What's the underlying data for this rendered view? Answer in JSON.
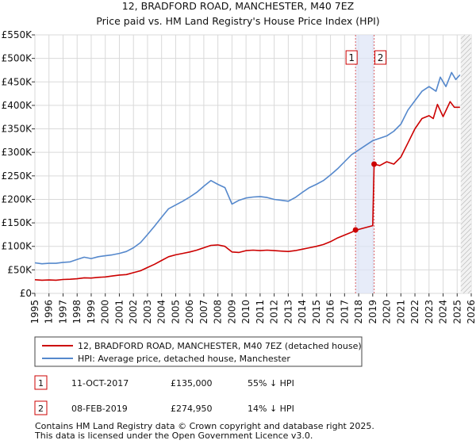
{
  "chart_data": {
    "type": "line",
    "title": "12, BRADFORD ROAD, MANCHESTER, M40 7EZ",
    "subtitle": "Price paid vs. HM Land Registry's House Price Index (HPI)",
    "ylim": [
      0,
      550000
    ],
    "xlim": [
      1995,
      2026
    ],
    "y_ticks": [
      {
        "value": 0,
        "label": "£0"
      },
      {
        "value": 50000,
        "label": "£50K"
      },
      {
        "value": 100000,
        "label": "£100K"
      },
      {
        "value": 150000,
        "label": "£150K"
      },
      {
        "value": 200000,
        "label": "£200K"
      },
      {
        "value": 250000,
        "label": "£250K"
      },
      {
        "value": 300000,
        "label": "£300K"
      },
      {
        "value": 350000,
        "label": "£350K"
      },
      {
        "value": 400000,
        "label": "£400K"
      },
      {
        "value": 450000,
        "label": "£450K"
      },
      {
        "value": 500000,
        "label": "£500K"
      },
      {
        "value": 550000,
        "label": "£550K"
      }
    ],
    "x_ticks": [
      "1995",
      "1996",
      "1997",
      "1998",
      "1999",
      "2000",
      "2001",
      "2002",
      "2003",
      "2004",
      "2005",
      "2006",
      "2007",
      "2008",
      "2009",
      "2010",
      "2011",
      "2012",
      "2013",
      "2014",
      "2015",
      "2016",
      "2017",
      "2018",
      "2019",
      "2020",
      "2021",
      "2022",
      "2023",
      "2024",
      "2025",
      "2026"
    ],
    "grid": true,
    "series": [
      {
        "name": "12, BRADFORD ROAD, MANCHESTER, M40 7EZ (detached house)",
        "color": "#cc0000",
        "points": [
          [
            1995.0,
            29000
          ],
          [
            1995.5,
            28000
          ],
          [
            1996.0,
            28500
          ],
          [
            1996.5,
            28000
          ],
          [
            1997.0,
            29500
          ],
          [
            1997.5,
            30000
          ],
          [
            1998.0,
            31000
          ],
          [
            1998.5,
            33000
          ],
          [
            1999.0,
            32500
          ],
          [
            1999.5,
            34000
          ],
          [
            2000.0,
            35000
          ],
          [
            2000.5,
            37000
          ],
          [
            2001.0,
            39000
          ],
          [
            2001.5,
            40000
          ],
          [
            2002.0,
            44000
          ],
          [
            2002.5,
            48000
          ],
          [
            2003.0,
            55000
          ],
          [
            2003.5,
            62000
          ],
          [
            2004.0,
            70000
          ],
          [
            2004.5,
            78000
          ],
          [
            2005.0,
            82000
          ],
          [
            2005.5,
            85000
          ],
          [
            2006.0,
            88000
          ],
          [
            2006.5,
            92000
          ],
          [
            2007.0,
            97000
          ],
          [
            2007.5,
            102000
          ],
          [
            2008.0,
            103000
          ],
          [
            2008.5,
            100000
          ],
          [
            2009.0,
            88000
          ],
          [
            2009.5,
            87000
          ],
          [
            2010.0,
            91000
          ],
          [
            2010.5,
            92000
          ],
          [
            2011.0,
            91000
          ],
          [
            2011.5,
            92000
          ],
          [
            2012.0,
            91000
          ],
          [
            2012.5,
            90000
          ],
          [
            2013.0,
            89000
          ],
          [
            2013.5,
            91000
          ],
          [
            2014.0,
            94000
          ],
          [
            2014.5,
            97000
          ],
          [
            2015.0,
            100000
          ],
          [
            2015.5,
            104000
          ],
          [
            2016.0,
            110000
          ],
          [
            2016.5,
            118000
          ],
          [
            2017.0,
            124000
          ],
          [
            2017.5,
            130000
          ],
          [
            2017.78,
            135000
          ],
          [
            2018.0,
            136000
          ],
          [
            2018.5,
            140000
          ],
          [
            2019.0,
            144000
          ],
          [
            2019.1,
            274950
          ],
          [
            2019.5,
            272000
          ],
          [
            2020.0,
            280000
          ],
          [
            2020.5,
            275000
          ],
          [
            2021.0,
            290000
          ],
          [
            2021.5,
            320000
          ],
          [
            2022.0,
            350000
          ],
          [
            2022.5,
            372000
          ],
          [
            2023.0,
            378000
          ],
          [
            2023.3,
            372000
          ],
          [
            2023.6,
            402000
          ],
          [
            2024.0,
            376000
          ],
          [
            2024.5,
            408000
          ],
          [
            2024.8,
            396000
          ],
          [
            2025.2,
            396000
          ]
        ]
      },
      {
        "name": "HPI: Average price, detached house, Manchester",
        "color": "#5588cc",
        "points": [
          [
            1995.0,
            65000
          ],
          [
            1995.5,
            63000
          ],
          [
            1996.0,
            64000
          ],
          [
            1996.5,
            64000
          ],
          [
            1997.0,
            66000
          ],
          [
            1997.5,
            67000
          ],
          [
            1998.0,
            72000
          ],
          [
            1998.5,
            77000
          ],
          [
            1999.0,
            74000
          ],
          [
            1999.5,
            78000
          ],
          [
            2000.0,
            80000
          ],
          [
            2000.5,
            82000
          ],
          [
            2001.0,
            85000
          ],
          [
            2001.5,
            89000
          ],
          [
            2002.0,
            97000
          ],
          [
            2002.5,
            108000
          ],
          [
            2003.0,
            125000
          ],
          [
            2003.5,
            143000
          ],
          [
            2004.0,
            162000
          ],
          [
            2004.5,
            180000
          ],
          [
            2005.0,
            188000
          ],
          [
            2005.5,
            196000
          ],
          [
            2006.0,
            205000
          ],
          [
            2006.5,
            215000
          ],
          [
            2007.0,
            228000
          ],
          [
            2007.5,
            240000
          ],
          [
            2008.0,
            232000
          ],
          [
            2008.5,
            225000
          ],
          [
            2009.0,
            190000
          ],
          [
            2009.5,
            198000
          ],
          [
            2010.0,
            203000
          ],
          [
            2010.5,
            205000
          ],
          [
            2011.0,
            206000
          ],
          [
            2011.5,
            204000
          ],
          [
            2012.0,
            200000
          ],
          [
            2012.5,
            198000
          ],
          [
            2013.0,
            196000
          ],
          [
            2013.5,
            204000
          ],
          [
            2014.0,
            215000
          ],
          [
            2014.5,
            225000
          ],
          [
            2015.0,
            232000
          ],
          [
            2015.5,
            240000
          ],
          [
            2016.0,
            252000
          ],
          [
            2016.5,
            265000
          ],
          [
            2017.0,
            280000
          ],
          [
            2017.5,
            295000
          ],
          [
            2018.0,
            305000
          ],
          [
            2018.5,
            315000
          ],
          [
            2019.0,
            325000
          ],
          [
            2019.5,
            330000
          ],
          [
            2020.0,
            335000
          ],
          [
            2020.5,
            345000
          ],
          [
            2021.0,
            360000
          ],
          [
            2021.5,
            390000
          ],
          [
            2022.0,
            410000
          ],
          [
            2022.5,
            430000
          ],
          [
            2023.0,
            440000
          ],
          [
            2023.5,
            430000
          ],
          [
            2023.8,
            460000
          ],
          [
            2024.2,
            440000
          ],
          [
            2024.6,
            470000
          ],
          [
            2024.9,
            455000
          ],
          [
            2025.2,
            465000
          ]
        ]
      }
    ],
    "markers": [
      {
        "id": "1",
        "x": 2017.78,
        "y": 135000,
        "label": "1"
      },
      {
        "id": "2",
        "x": 2019.1,
        "y": 274950,
        "label": "2"
      }
    ],
    "highlight_band": {
      "from": 2017.78,
      "to": 2019.1,
      "color": "#dde4f7"
    },
    "future_from": 2025.25
  },
  "legend": {
    "items": [
      {
        "label": "12, BRADFORD ROAD, MANCHESTER, M40 7EZ (detached house)",
        "color": "#cc0000"
      },
      {
        "label": "HPI: Average price, detached house, Manchester",
        "color": "#5588cc"
      }
    ]
  },
  "transactions": [
    {
      "id": "1",
      "date": "11-OCT-2017",
      "price": "£135,000",
      "hpi": "55% ↓ HPI"
    },
    {
      "id": "2",
      "date": "08-FEB-2019",
      "price": "£274,950",
      "hpi": "14% ↓ HPI"
    }
  ],
  "footer": {
    "line1": "Contains HM Land Registry data © Crown copyright and database right 2025.",
    "line2": "This data is licensed under the Open Government Licence v3.0."
  }
}
